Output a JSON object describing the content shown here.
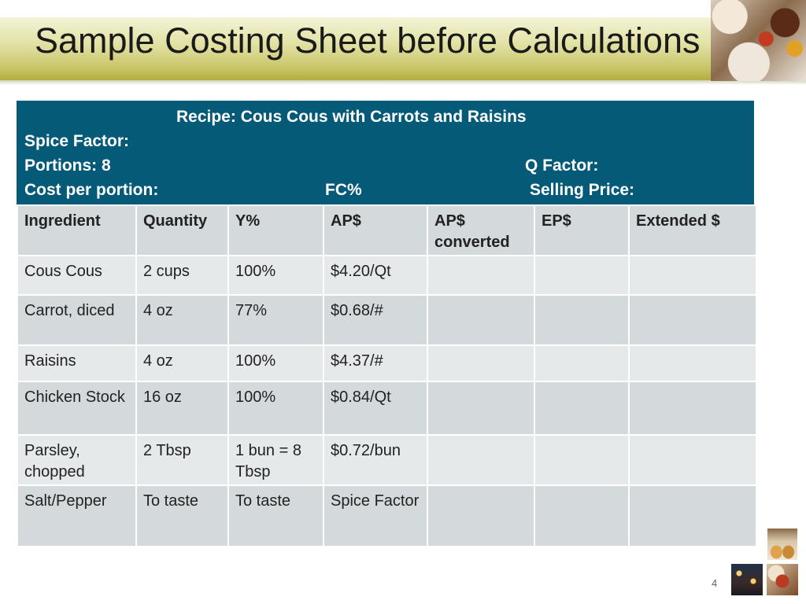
{
  "slide": {
    "title": "Sample Costing Sheet before Calculations",
    "page_number": "4"
  },
  "recipe": {
    "recipe_line": "Recipe: Cous Cous with Carrots and Raisins",
    "spice_factor": "Spice Factor:",
    "portions": "Portions: 8",
    "q_factor": "Q Factor:",
    "cost_per_portion": "Cost per portion:",
    "fc_percent": "FC%",
    "selling_price": "Selling Price:"
  },
  "table": {
    "headers": [
      "Ingredient",
      "Quantity",
      "Y%",
      "AP$",
      "AP$ converted",
      "EP$",
      "Extended  $"
    ],
    "rows": [
      [
        "Cous Cous",
        "2 cups",
        "100%",
        "$4.20/Qt",
        "",
        "",
        ""
      ],
      [
        "Carrot, diced",
        "4 oz",
        "77%",
        "$0.68/#",
        "",
        "",
        ""
      ],
      [
        "Raisins",
        "4 oz",
        "100%",
        "$4.37/#",
        "",
        "",
        ""
      ],
      [
        "Chicken Stock",
        "16 oz",
        "100%",
        "$0.84/Qt",
        "",
        "",
        ""
      ],
      [
        "Parsley, chopped",
        "2 Tbsp",
        "1 bun = 8 Tbsp",
        "$0.72/bun",
        "",
        "",
        ""
      ],
      [
        "Salt/Pepper",
        "To taste",
        "To taste",
        "Spice Factor",
        "",
        "",
        ""
      ]
    ]
  }
}
